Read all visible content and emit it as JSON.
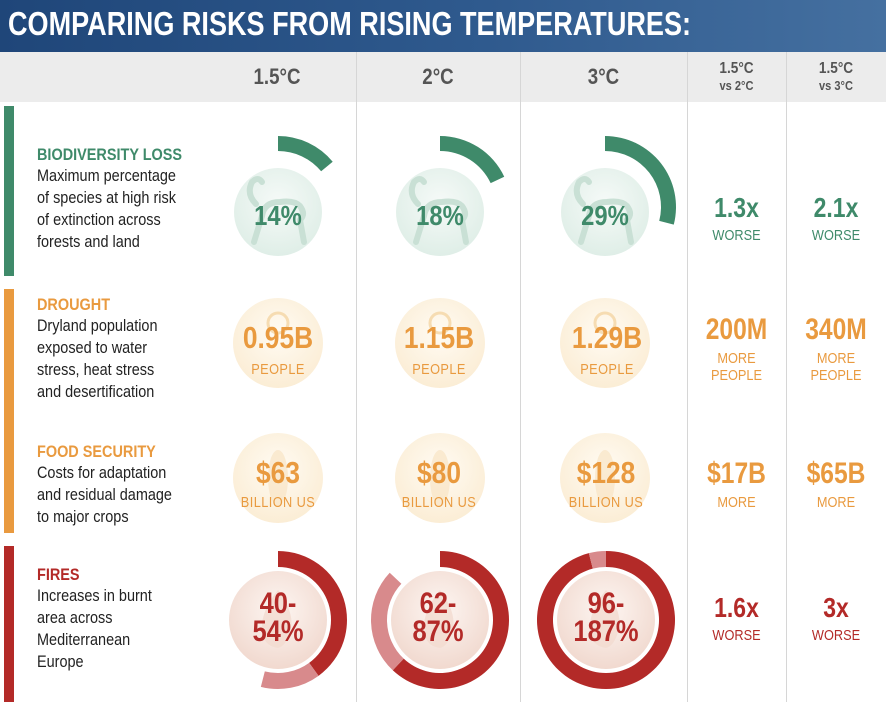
{
  "title": "COMPARING RISKS FROM RISING TEMPERATURES:",
  "columns": {
    "c1": "1.5°C",
    "c2": "2°C",
    "c3": "3°C",
    "c4_line1": "1.5°C",
    "c4_line2": "vs 2°C",
    "c5_line1": "1.5°C",
    "c5_line2": "vs 3°C"
  },
  "colors": {
    "header_blue": "#1f4679",
    "green": "#3f8a6a",
    "orange": "#e99a3f",
    "red": "#b32a28",
    "red_light": "#d88a8c",
    "header_text": "#555555"
  },
  "rows": [
    {
      "name": "BIODIVERSITY LOSS",
      "desc": [
        "Maximum percentage",
        "of species at high risk",
        "of extinction across",
        "forests and land"
      ],
      "icon": "monkey-icon",
      "values": [
        "14%",
        "18%",
        "29%"
      ],
      "unit": "",
      "cmp": [
        {
          "value": "1.3x",
          "unit1": "WORSE",
          "unit2": ""
        },
        {
          "value": "2.1x",
          "unit1": "WORSE",
          "unit2": ""
        }
      ]
    },
    {
      "name": "DROUGHT",
      "desc": [
        "Dryland population",
        "exposed to water",
        "stress, heat stress",
        "and desertification"
      ],
      "icon": "sun-icon",
      "values": [
        "0.95B",
        "1.15B",
        "1.29B"
      ],
      "unit": "PEOPLE",
      "cmp": [
        {
          "value": "200M",
          "unit1": "MORE",
          "unit2": "PEOPLE"
        },
        {
          "value": "340M",
          "unit1": "MORE",
          "unit2": "PEOPLE"
        }
      ]
    },
    {
      "name": "FOOD SECURITY",
      "desc": [
        "Costs for adaptation",
        "and residual damage",
        "to major crops"
      ],
      "icon": "corn-icon",
      "values": [
        "$63",
        "$80",
        "$128"
      ],
      "unit": "BILLION US",
      "cmp": [
        {
          "value": "$17B",
          "unit1": "MORE",
          "unit2": ""
        },
        {
          "value": "$65B",
          "unit1": "MORE",
          "unit2": ""
        }
      ]
    },
    {
      "name": "FIRES",
      "desc": [
        "Increases in burnt",
        "area across",
        "Mediterranean",
        "Europe"
      ],
      "icon": "flame-icon",
      "values_line1": [
        "40-",
        "62-",
        "96-"
      ],
      "values_line2": [
        "54%",
        "87%",
        "187%"
      ],
      "cmp": [
        {
          "value": "1.6x",
          "unit1": "WORSE",
          "unit2": ""
        },
        {
          "value": "3x",
          "unit1": "WORSE",
          "unit2": ""
        }
      ]
    }
  ],
  "chart_data": {
    "type": "table",
    "title": "COMPARING RISKS FROM RISING TEMPERATURES:",
    "columns": [
      "1.5°C",
      "2°C",
      "3°C",
      "1.5°C vs 2°C",
      "1.5°C vs 3°C"
    ],
    "rows": [
      {
        "category": "Biodiversity loss",
        "metric_percent": [
          14,
          18,
          29
        ],
        "comparison": [
          "1.3x worse",
          "2.1x worse"
        ]
      },
      {
        "category": "Drought",
        "people_billion": [
          0.95,
          1.15,
          1.29
        ],
        "comparison": [
          "200M more people",
          "340M more people"
        ]
      },
      {
        "category": "Food security",
        "billion_usd": [
          63,
          80,
          128
        ],
        "comparison": [
          "$17B more",
          "$65B more"
        ]
      },
      {
        "category": "Fires",
        "percent_range": [
          [
            40,
            54
          ],
          [
            62,
            87
          ],
          [
            96,
            187
          ]
        ],
        "comparison": [
          "1.6x worse",
          "3x worse"
        ]
      }
    ]
  }
}
